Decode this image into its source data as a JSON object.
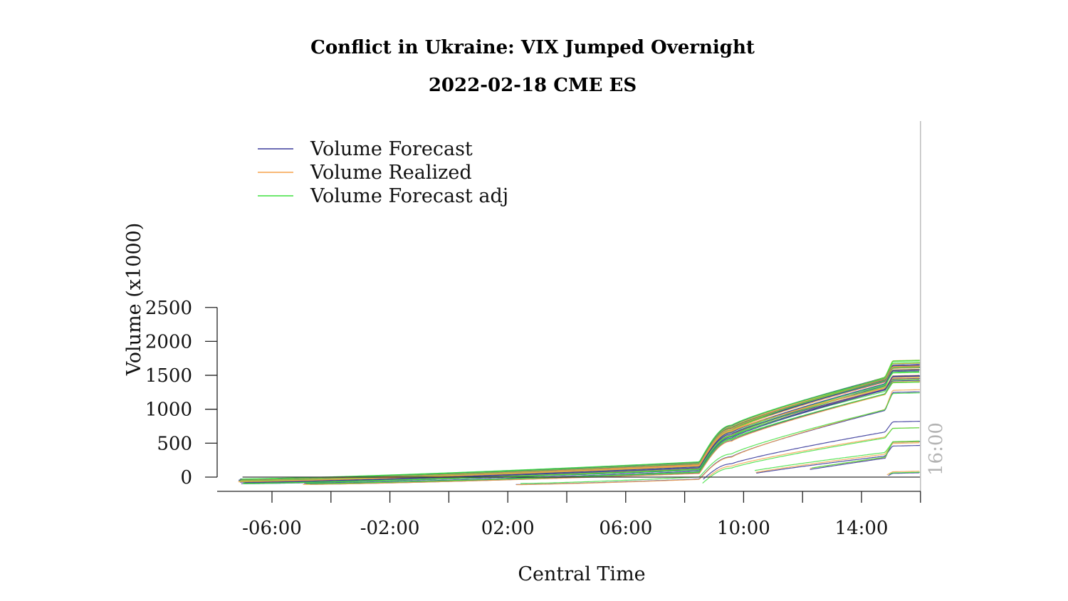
{
  "chart_data": {
    "type": "line",
    "title": "Conflict in Ukraine: VIX Jumped Overnight",
    "subtitle": "2022-02-18 CME ES",
    "xlabel": "Central Time",
    "ylabel": "Volume (x1000)",
    "x_unit": "hours (Central Time)",
    "xlim": [
      -8.2,
      16
    ],
    "ylim": [
      -105,
      2500
    ],
    "yticks": [
      0,
      500,
      1000,
      1500,
      2000,
      2500
    ],
    "xticks": [
      {
        "value": -6,
        "label": "-06:00"
      },
      {
        "value": -2,
        "label": "-02:00"
      },
      {
        "value": 2,
        "label": "02:00"
      },
      {
        "value": 6,
        "label": "06:00"
      },
      {
        "value": 10,
        "label": "10:00"
      },
      {
        "value": 14,
        "label": "14:00"
      }
    ],
    "minor_xticks": [
      -4,
      0,
      4,
      8,
      12,
      16
    ],
    "hline": 0,
    "vline": {
      "value": 16,
      "label": "16:00"
    },
    "legend": {
      "position": "top-left",
      "entries": [
        {
          "label": "Volume Forecast",
          "color": "#3b3b9c"
        },
        {
          "label": "Volume Realized",
          "color": "#f5a24a"
        },
        {
          "label": "Volume Forecast adj",
          "color": "#3fe03f"
        }
      ]
    },
    "groups": [
      {
        "start": -7.0,
        "v_open": -45,
        "v_am": 190,
        "v_noon": 1150,
        "v_close": 1650,
        "spread": 60,
        "count": 8
      },
      {
        "start": -7.0,
        "v_open": -80,
        "v_am": 140,
        "v_noon": 1050,
        "v_close": 1520,
        "spread": 60,
        "count": 5
      },
      {
        "start": -4.8,
        "v_open": -100,
        "v_am": 70,
        "v_noon": 950,
        "v_close": 1450,
        "spread": 40,
        "count": 2
      },
      {
        "start": 2.3,
        "v_open": -100,
        "v_am": -10,
        "v_noon": 600,
        "v_close": 1260,
        "spread": 40,
        "count": 1
      },
      {
        "start": 8.7,
        "v_open": -100,
        "v_am": -100,
        "v_noon": 400,
        "v_close": 800,
        "spread": 60,
        "count": 1
      },
      {
        "start": 10.4,
        "v_open": -100,
        "v_am": -100,
        "v_noon": 90,
        "v_close": 520,
        "spread": 40,
        "count": 1
      },
      {
        "start": 12.2,
        "v_open": -100,
        "v_am": -100,
        "v_noon": -60,
        "v_close": 480,
        "spread": 40,
        "count": 1
      },
      {
        "start": 14.85,
        "v_open": -100,
        "v_am": -100,
        "v_noon": -100,
        "v_close": 65,
        "spread": 20,
        "count": 1
      }
    ]
  }
}
